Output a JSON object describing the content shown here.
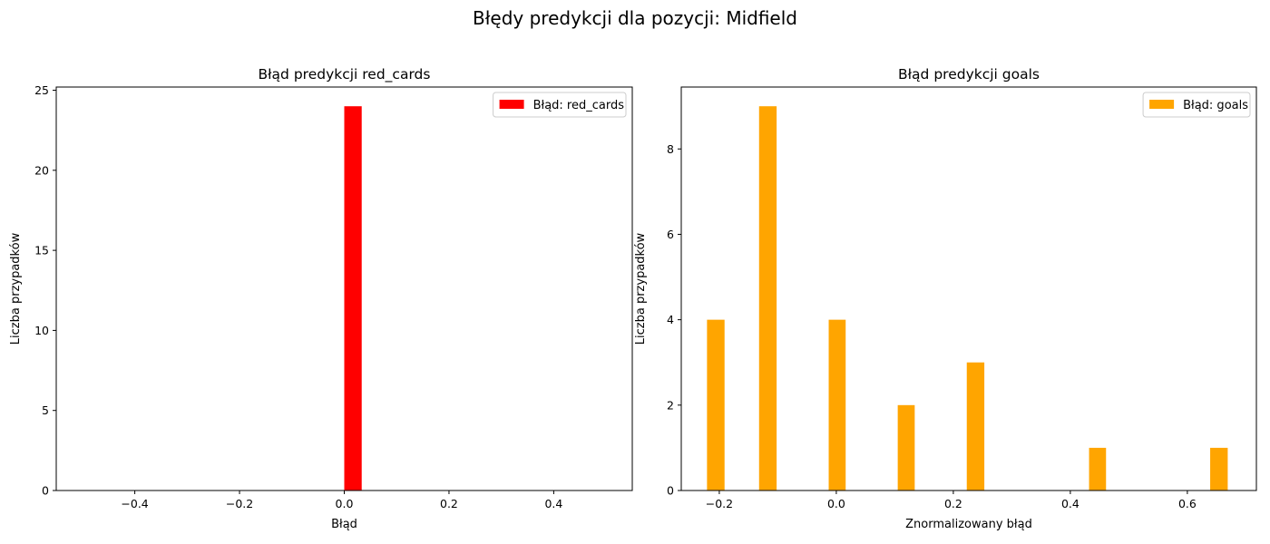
{
  "figure": {
    "suptitle": "Błędy predykcji dla pozycji: Midfield"
  },
  "chart_data": [
    {
      "type": "bar",
      "title": "Błąd predykcji red_cards",
      "xlabel": "Błąd",
      "ylabel": "Liczba przypadków",
      "xlim": [
        -0.55,
        0.55
      ],
      "ylim": [
        0,
        25.2
      ],
      "xticks": [
        -0.4,
        -0.2,
        0.0,
        0.2,
        0.4
      ],
      "xtick_labels": [
        "−0.4",
        "−0.2",
        "0.0",
        "0.2",
        "0.4"
      ],
      "yticks": [
        0,
        5,
        10,
        15,
        20,
        25
      ],
      "ytick_labels": [
        "0",
        "5",
        "10",
        "15",
        "20",
        "25"
      ],
      "grid": false,
      "legend_position": "top-right",
      "series": [
        {
          "name": "Błąd: red_cards",
          "color": "#ff0000",
          "bars": [
            {
              "x_start": 0.0,
              "x_end": 0.0333,
              "value": 24
            }
          ]
        }
      ]
    },
    {
      "type": "bar",
      "title": "Błąd predykcji goals",
      "xlabel": "Znormalizowany błąd",
      "ylabel": "Liczba przypadków",
      "xlim": [
        -0.265,
        0.718
      ],
      "ylim": [
        0,
        9.45
      ],
      "xticks": [
        -0.2,
        0.0,
        0.2,
        0.4,
        0.6
      ],
      "xtick_labels": [
        "−0.2",
        "0.0",
        "0.2",
        "0.4",
        "0.6"
      ],
      "yticks": [
        0,
        2,
        4,
        6,
        8
      ],
      "ytick_labels": [
        "0",
        "2",
        "4",
        "6",
        "8"
      ],
      "grid": false,
      "legend_position": "top-right",
      "series": [
        {
          "name": "Błąd: goals",
          "color": "#ffa500",
          "bars": [
            {
              "x_start": -0.221,
              "x_end": -0.191,
              "value": 4
            },
            {
              "x_start": -0.132,
              "x_end": -0.102,
              "value": 9
            },
            {
              "x_start": -0.013,
              "x_end": 0.016,
              "value": 4
            },
            {
              "x_start": 0.105,
              "x_end": 0.134,
              "value": 2
            },
            {
              "x_start": 0.223,
              "x_end": 0.253,
              "value": 3
            },
            {
              "x_start": 0.432,
              "x_end": 0.461,
              "value": 1
            },
            {
              "x_start": 0.639,
              "x_end": 0.669,
              "value": 1
            }
          ]
        }
      ]
    }
  ]
}
